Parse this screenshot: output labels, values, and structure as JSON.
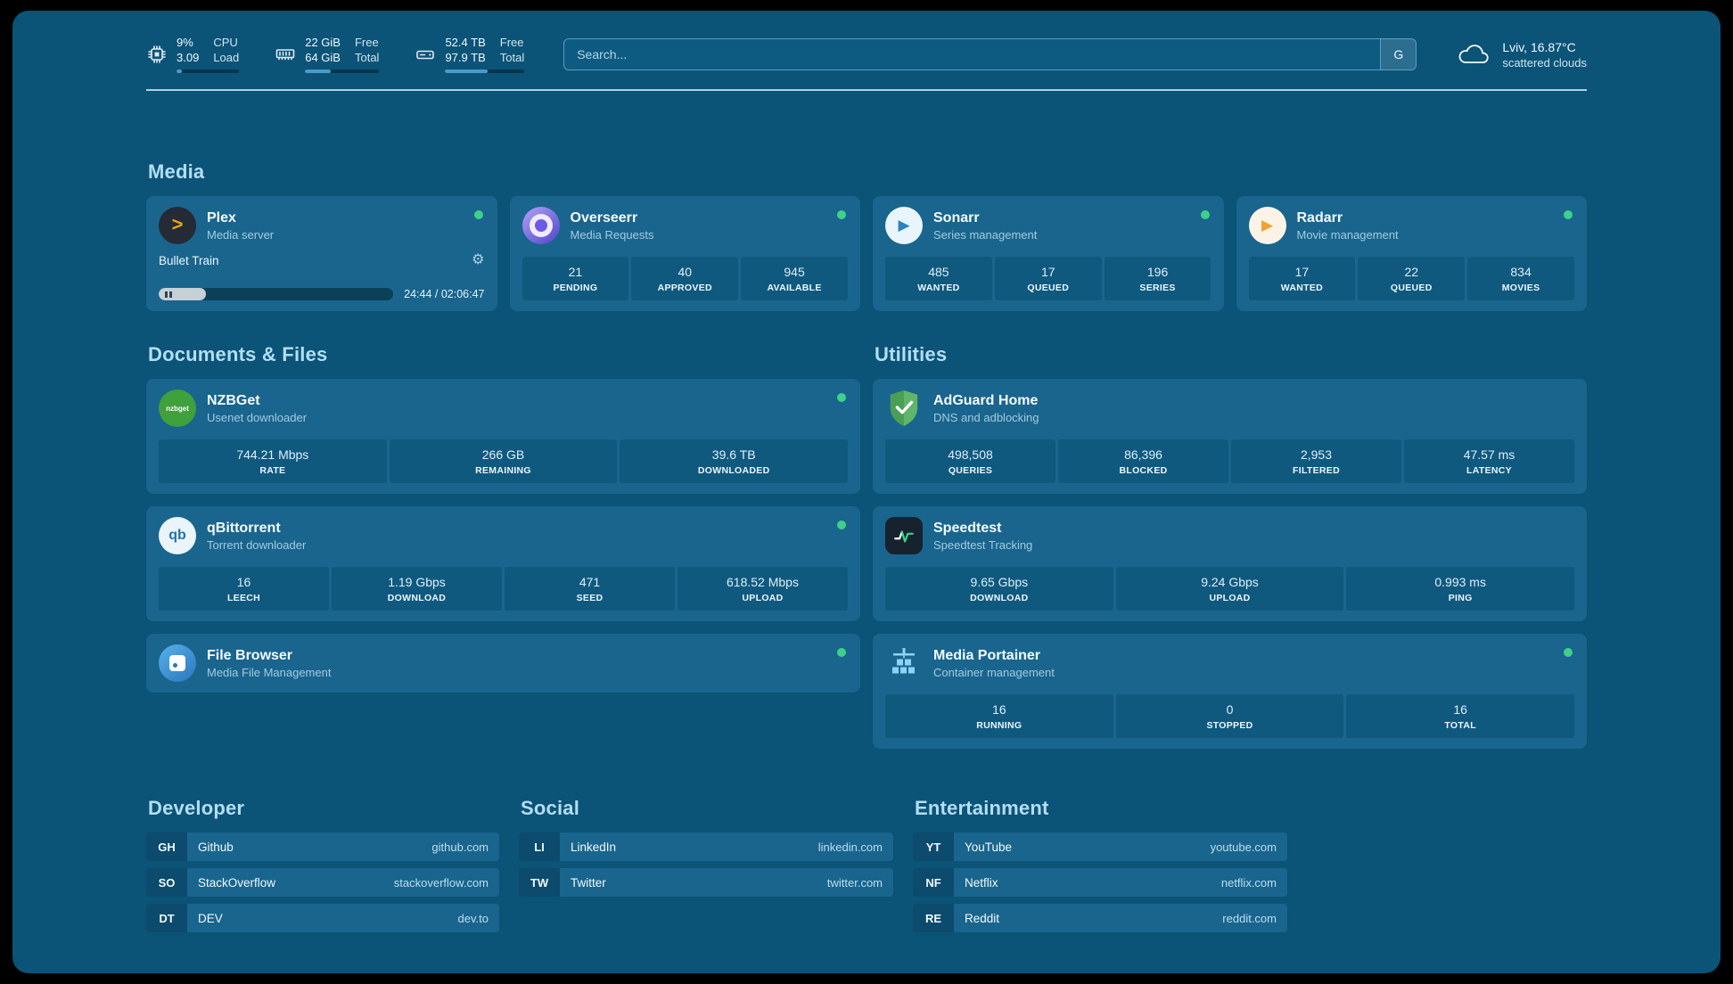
{
  "topbar": {
    "cpu": {
      "v1": "9%",
      "v2": "3.09",
      "l1": "CPU",
      "l2": "Load",
      "progress": 9
    },
    "ram": {
      "v1": "22 GiB",
      "v2": "64 GiB",
      "l1": "Free",
      "l2": "Total",
      "progress": 34
    },
    "disk": {
      "v1": "52.4 TB",
      "v2": "97.9 TB",
      "l1": "Free",
      "l2": "Total",
      "progress": 54
    },
    "search": {
      "placeholder": "Search...",
      "engine": "G"
    },
    "weather": {
      "location": "Lviv, 16.87°C",
      "condition": "scattered clouds"
    }
  },
  "sections": {
    "media": "Media",
    "documents": "Documents & Files",
    "utilities": "Utilities",
    "developer": "Developer",
    "social": "Social",
    "entertainment": "Entertainment"
  },
  "apps": {
    "plex": {
      "title": "Plex",
      "subtitle": "Media server",
      "icon_glyph": ">",
      "now_playing": "Bullet Train",
      "time": "24:44 / 02:06:47",
      "progress": 20
    },
    "overseerr": {
      "title": "Overseerr",
      "subtitle": "Media Requests",
      "stats": [
        {
          "value": "21",
          "label": "PENDING"
        },
        {
          "value": "40",
          "label": "APPROVED"
        },
        {
          "value": "945",
          "label": "AVAILABLE"
        }
      ]
    },
    "sonarr": {
      "title": "Sonarr",
      "subtitle": "Series management",
      "icon_glyph": "▶",
      "stats": [
        {
          "value": "485",
          "label": "WANTED"
        },
        {
          "value": "17",
          "label": "QUEUED"
        },
        {
          "value": "196",
          "label": "SERIES"
        }
      ]
    },
    "radarr": {
      "title": "Radarr",
      "subtitle": "Movie management",
      "icon_glyph": "▶",
      "stats": [
        {
          "value": "17",
          "label": "WANTED"
        },
        {
          "value": "22",
          "label": "QUEUED"
        },
        {
          "value": "834",
          "label": "MOVIES"
        }
      ]
    },
    "nzbget": {
      "title": "NZBGet",
      "subtitle": "Usenet downloader",
      "icon_text": "nzbget",
      "stats": [
        {
          "value": "744.21 Mbps",
          "label": "RATE"
        },
        {
          "value": "266 GB",
          "label": "REMAINING"
        },
        {
          "value": "39.6 TB",
          "label": "DOWNLOADED"
        }
      ]
    },
    "qbittorrent": {
      "title": "qBittorrent",
      "subtitle": "Torrent downloader",
      "icon_text": "qb",
      "stats": [
        {
          "value": "16",
          "label": "LEECH"
        },
        {
          "value": "1.19 Gbps",
          "label": "DOWNLOAD"
        },
        {
          "value": "471",
          "label": "SEED"
        },
        {
          "value": "618.52 Mbps",
          "label": "UPLOAD"
        }
      ]
    },
    "filebrowser": {
      "title": "File Browser",
      "subtitle": "Media File Management"
    },
    "adguard": {
      "title": "AdGuard Home",
      "subtitle": "DNS and adblocking",
      "stats": [
        {
          "value": "498,508",
          "label": "QUERIES"
        },
        {
          "value": "86,396",
          "label": "BLOCKED"
        },
        {
          "value": "2,953",
          "label": "FILTERED"
        },
        {
          "value": "47.57 ms",
          "label": "LATENCY"
        }
      ]
    },
    "speedtest": {
      "title": "Speedtest",
      "subtitle": "Speedtest Tracking",
      "stats": [
        {
          "value": "9.65 Gbps",
          "label": "DOWNLOAD"
        },
        {
          "value": "9.24 Gbps",
          "label": "UPLOAD"
        },
        {
          "value": "0.993 ms",
          "label": "PING"
        }
      ]
    },
    "portainer": {
      "title": "Media Portainer",
      "subtitle": "Container management",
      "stats": [
        {
          "value": "16",
          "label": "RUNNING"
        },
        {
          "value": "0",
          "label": "STOPPED"
        },
        {
          "value": "16",
          "label": "TOTAL"
        }
      ]
    }
  },
  "bookmarks": {
    "developer": {
      "items": [
        {
          "abbr": "GH",
          "name": "Github",
          "url": "github.com"
        },
        {
          "abbr": "SO",
          "name": "StackOverflow",
          "url": "stackoverflow.com"
        },
        {
          "abbr": "DT",
          "name": "DEV",
          "url": "dev.to"
        }
      ]
    },
    "social": {
      "items": [
        {
          "abbr": "LI",
          "name": "LinkedIn",
          "url": "linkedin.com"
        },
        {
          "abbr": "TW",
          "name": "Twitter",
          "url": "twitter.com"
        }
      ]
    },
    "entertainment": {
      "items": [
        {
          "abbr": "YT",
          "name": "YouTube",
          "url": "youtube.com"
        },
        {
          "abbr": "NF",
          "name": "Netflix",
          "url": "netflix.com"
        },
        {
          "abbr": "RE",
          "name": "Reddit",
          "url": "reddit.com"
        }
      ]
    }
  },
  "colors": {
    "background": "#0b5377",
    "card": "#19658d",
    "tile": "#10597e",
    "accent_heading": "#b3def4",
    "status_green": "#3fd08c"
  }
}
